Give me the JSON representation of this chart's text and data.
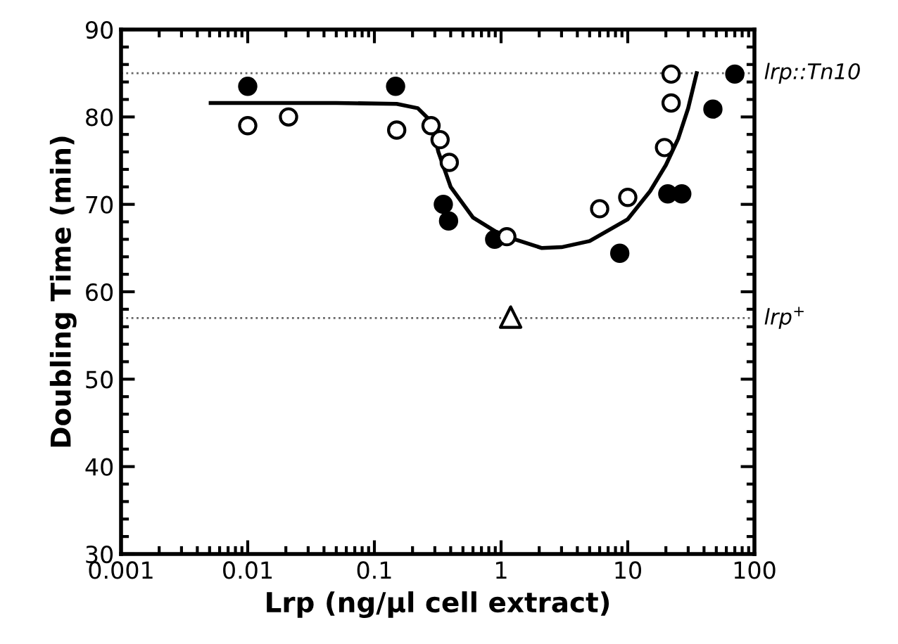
{
  "chart_data": {
    "type": "scatter",
    "xlabel": "Lrp (ng/µl cell extract)",
    "ylabel": "Doubling Time (min)",
    "log": "x",
    "xlim": [
      0.001,
      100
    ],
    "xticks": [
      0.001,
      0.01,
      0.1,
      1,
      10,
      100
    ],
    "ylim": [
      30,
      90
    ],
    "yticks": [
      30,
      40,
      50,
      60,
      70,
      80,
      90
    ],
    "grid": false,
    "legend": false,
    "series": [
      {
        "marker": "circle",
        "color": "#000000",
        "x": [
          0.01,
          0.147,
          0.35,
          0.385,
          0.89,
          8.65,
          20.7,
          26.7,
          47,
          70
        ],
        "values": [
          83.5,
          83.5,
          70,
          68.1,
          66.0,
          64.4,
          71.2,
          71.2,
          80.9,
          84.9
        ]
      },
      {
        "marker": "circle",
        "color": "#ffffff",
        "x": [
          0.01,
          0.021,
          0.15,
          0.28,
          0.33,
          0.39,
          1.11,
          6.0,
          10,
          19.5,
          22,
          22
        ],
        "values": [
          79.0,
          80.0,
          78.5,
          79.0,
          77.4,
          74.8,
          66.3,
          69.5,
          70.8,
          76.5,
          81.6,
          84.9
        ]
      },
      {
        "marker": "triangle",
        "color": "#ffffff",
        "x": [
          1.19
        ],
        "values": [
          57.1
        ]
      },
      {
        "type": "line",
        "marker": "none",
        "color": "#000000",
        "x": [
          0.0051,
          0.05,
          0.15,
          0.22,
          0.28,
          0.32,
          0.4,
          0.6,
          1,
          2.1,
          3,
          5,
          10,
          15,
          20,
          25,
          30,
          35
        ],
        "values": [
          81.6,
          81.6,
          81.5,
          81,
          79.5,
          76,
          72,
          68.5,
          66.5,
          65.0,
          65.1,
          65.8,
          68.3,
          71.5,
          74.5,
          77.5,
          81,
          85
        ]
      }
    ],
    "ref_lines": [
      {
        "axis": "y",
        "value": 85,
        "label": "lrp::Tn10",
        "color": "#666666",
        "line_style": "dotted"
      },
      {
        "axis": "y",
        "value": 57,
        "label": "lrp$^{+}$",
        "color": "#666666",
        "line_style": "dotted"
      }
    ]
  }
}
